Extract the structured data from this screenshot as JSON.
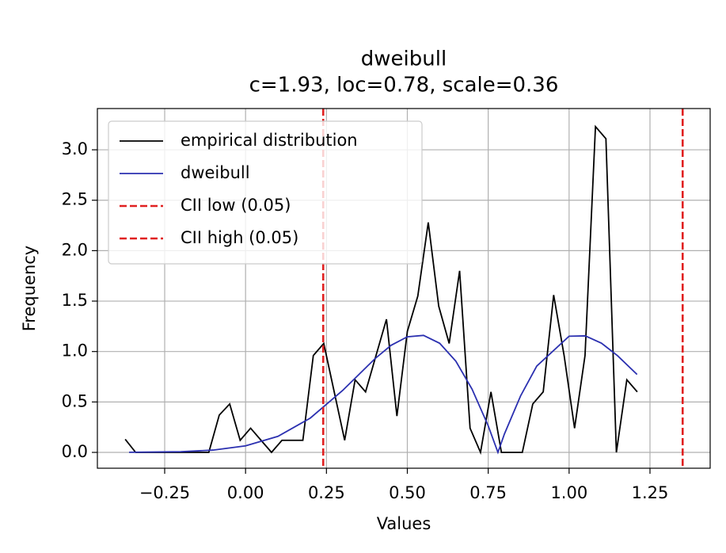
{
  "chart_data": {
    "type": "line",
    "title": "dweibull",
    "subtitle": "c=1.93, loc=0.78, scale=0.36",
    "xlabel": "Values",
    "ylabel": "Frequency",
    "xlim": [
      -0.458,
      1.436
    ],
    "ylim": [
      -0.157,
      3.409
    ],
    "xticks": [
      {
        "value": -0.25,
        "label": "−0.25"
      },
      {
        "value": 0,
        "label": "0.00"
      },
      {
        "value": 0.25,
        "label": "0.25"
      },
      {
        "value": 0.5,
        "label": "0.50"
      },
      {
        "value": 0.75,
        "label": "0.75"
      },
      {
        "value": 1,
        "label": "1.00"
      },
      {
        "value": 1.25,
        "label": "1.25"
      }
    ],
    "yticks": [
      {
        "value": 0,
        "label": "0.0"
      },
      {
        "value": 0.5,
        "label": "0.5"
      },
      {
        "value": 1,
        "label": "1.0"
      },
      {
        "value": 1.5,
        "label": "1.5"
      },
      {
        "value": 2,
        "label": "2.0"
      },
      {
        "value": 2.5,
        "label": "2.5"
      },
      {
        "value": 3,
        "label": "3.0"
      }
    ],
    "grid": true,
    "legend": "upper left",
    "series": [
      {
        "name": "empirical distribution",
        "color": "#000000",
        "x": [
          -0.372,
          -0.3397,
          -0.3074,
          -0.2751,
          -0.2428,
          -0.2105,
          -0.1782,
          -0.1459,
          -0.1136,
          -0.0813,
          -0.049,
          -0.0167,
          0.0156,
          0.0479,
          0.0802,
          0.1125,
          0.1448,
          0.1771,
          0.2094,
          0.2417,
          0.274,
          0.3063,
          0.3386,
          0.3709,
          0.4032,
          0.4355,
          0.4678,
          0.5001,
          0.5324,
          0.5647,
          0.597,
          0.6293,
          0.6616,
          0.6939,
          0.7262,
          0.7585,
          0.7908,
          0.8231,
          0.8554,
          0.8877,
          0.92,
          0.9523,
          0.9846,
          1.0169,
          1.0492,
          1.0815,
          1.1138,
          1.1461,
          1.1784,
          1.2107
        ],
        "values": [
          0.13,
          0,
          0,
          0,
          0,
          0,
          0,
          0,
          0,
          0.37,
          0.48,
          0.12,
          0.24,
          0.12,
          0,
          0.12,
          0.12,
          0.12,
          0.96,
          1.08,
          0.6,
          0.12,
          0.72,
          0.6,
          0.96,
          1.32,
          0.36,
          1.2,
          1.55,
          2.28,
          1.45,
          1.08,
          1.8,
          0.24,
          0,
          0.6,
          0,
          0,
          0,
          0.48,
          0.6,
          1.56,
          0.96,
          0.24,
          0.96,
          3.23,
          3.11,
          0,
          0.72,
          0.6
        ]
      },
      {
        "name": "dweibull",
        "color": "#2b30b0",
        "x": [
          -0.36,
          -0.2,
          -0.1,
          0,
          0.1,
          0.2,
          0.3,
          0.4,
          0.45,
          0.5,
          0.55,
          0.6,
          0.65,
          0.7,
          0.75,
          0.78,
          0.8,
          0.85,
          0.9,
          1.0,
          1.05,
          1.1,
          1.15,
          1.21
        ],
        "values": [
          0.001,
          0.007,
          0.023,
          0.065,
          0.159,
          0.34,
          0.614,
          0.929,
          1.062,
          1.146,
          1.16,
          1.082,
          0.904,
          0.627,
          0.264,
          0,
          0.182,
          0.56,
          0.856,
          1.152,
          1.155,
          1.083,
          0.958,
          0.773
        ]
      }
    ],
    "vlines": [
      {
        "name": "CII low (0.05)",
        "color": "#e02020",
        "x": 0.24
      },
      {
        "name": "CII high (0.05)",
        "color": "#e02020",
        "x": 1.351
      }
    ]
  }
}
